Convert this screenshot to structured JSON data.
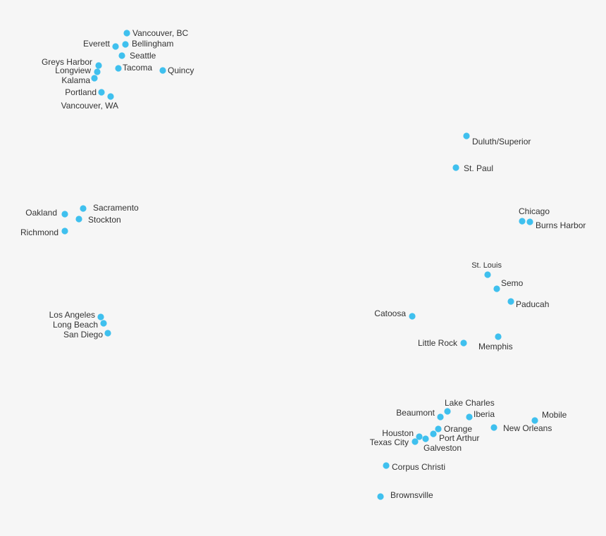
{
  "map": {
    "dot_color": "#3fc0ee",
    "text_color": "#333333",
    "background": "#f6f6f6",
    "ports": [
      {
        "id": "vancouver-bc",
        "name": "Vancouver, BC"
      },
      {
        "id": "everett",
        "name": "Everett"
      },
      {
        "id": "bellingham",
        "name": "Bellingham"
      },
      {
        "id": "seattle",
        "name": "Seattle"
      },
      {
        "id": "greys-harbor",
        "name": "Greys Harbor"
      },
      {
        "id": "longview",
        "name": "Longview"
      },
      {
        "id": "tacoma",
        "name": "Tacoma"
      },
      {
        "id": "quincy",
        "name": "Quincy"
      },
      {
        "id": "kalama",
        "name": "Kalama"
      },
      {
        "id": "portland",
        "name": "Portland"
      },
      {
        "id": "vancouver-wa",
        "name": "Vancouver, WA"
      },
      {
        "id": "oakland",
        "name": "Oakland"
      },
      {
        "id": "sacramento",
        "name": "Sacramento"
      },
      {
        "id": "stockton",
        "name": "Stockton"
      },
      {
        "id": "richmond",
        "name": "Richmond"
      },
      {
        "id": "los-angeles",
        "name": "Los Angeles"
      },
      {
        "id": "long-beach",
        "name": "Long Beach"
      },
      {
        "id": "san-diego",
        "name": "San Diego"
      },
      {
        "id": "duluth-superior",
        "name": "Duluth/Superior"
      },
      {
        "id": "st-paul",
        "name": "St. Paul"
      },
      {
        "id": "chicago",
        "name": "Chicago"
      },
      {
        "id": "burns-harbor",
        "name": "Burns Harbor"
      },
      {
        "id": "st-louis",
        "name": "St. Louis"
      },
      {
        "id": "semo",
        "name": "Semo"
      },
      {
        "id": "paducah",
        "name": "Paducah"
      },
      {
        "id": "catoosa",
        "name": "Catoosa"
      },
      {
        "id": "little-rock",
        "name": "Little Rock"
      },
      {
        "id": "memphis",
        "name": "Memphis"
      },
      {
        "id": "lake-charles",
        "name": "Lake Charles"
      },
      {
        "id": "beaumont",
        "name": "Beaumont"
      },
      {
        "id": "iberia",
        "name": "Iberia"
      },
      {
        "id": "mobile",
        "name": "Mobile"
      },
      {
        "id": "orange",
        "name": "Orange"
      },
      {
        "id": "new-orleans",
        "name": "New Orleans"
      },
      {
        "id": "houston",
        "name": "Houston"
      },
      {
        "id": "port-arthur",
        "name": "Port Arthur"
      },
      {
        "id": "texas-city",
        "name": "Texas City"
      },
      {
        "id": "galveston",
        "name": "Galveston"
      },
      {
        "id": "corpus-christi",
        "name": "Corpus Christi"
      },
      {
        "id": "brownsville",
        "name": "Brownsville"
      }
    ]
  }
}
